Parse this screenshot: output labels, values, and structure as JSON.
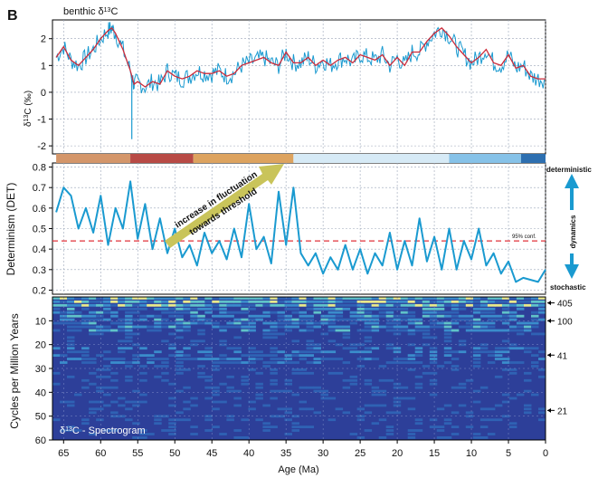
{
  "panel_label": "B",
  "panel1": {
    "title_prefix": "benthic δ",
    "title_sup": "13",
    "title_suffix": "C",
    "ylabel_prefix": "δ",
    "ylabel_sup": "13",
    "ylabel_suffix": "C (‰)",
    "yticks": [
      2,
      1,
      0,
      -1,
      -2
    ],
    "ylim": [
      -2.3,
      2.7
    ],
    "line_color": "#1a9ad0",
    "smooth_color": "#cc2b3a"
  },
  "band_colors": [
    {
      "from": 66,
      "to": 56,
      "color": "#d4966a"
    },
    {
      "from": 56,
      "to": 47.5,
      "color": "#b84a45"
    },
    {
      "from": 47.5,
      "to": 34,
      "color": "#dda35f"
    },
    {
      "from": 34,
      "to": 13,
      "color": "#d6eaf6"
    },
    {
      "from": 13,
      "to": 3.3,
      "color": "#86c2e8"
    },
    {
      "from": 3.3,
      "to": 0,
      "color": "#2d6fb0"
    }
  ],
  "panel2": {
    "ylabel": "Determinism (DET)",
    "yticks": [
      0.8,
      0.7,
      0.6,
      0.5,
      0.4,
      0.3,
      0.2
    ],
    "ylim": [
      0.18,
      0.82
    ],
    "threshold": 0.44,
    "threshold_label": "95% conf.",
    "arrow_text_line1": "increase in fluctuation",
    "arrow_text_line2": "towards threshold",
    "right_top": "deterministic",
    "right_mid": "dynamics",
    "right_bottom": "stochastic",
    "arrow_color": "#1a9ad0"
  },
  "panel3": {
    "ylabel": "Cycles per Million Years",
    "yticks": [
      10,
      20,
      30,
      40,
      50,
      60
    ],
    "ylim": [
      0,
      60
    ],
    "caption_prefix": "δ",
    "caption_sup": "13",
    "caption_suffix": "C - Spectrogram",
    "period_labels": [
      {
        "label": "405",
        "cycles": 2.5
      },
      {
        "label": "100",
        "cycles": 10
      },
      {
        "label": "41",
        "cycles": 24.4
      },
      {
        "label": "21",
        "cycles": 47.6
      }
    ]
  },
  "xaxis": {
    "label": "Age (Ma)",
    "ticks": [
      65,
      60,
      55,
      50,
      45,
      40,
      35,
      30,
      25,
      20,
      15,
      10,
      5,
      0
    ],
    "xlim": [
      66.5,
      0
    ]
  },
  "chart_data": [
    {
      "type": "line",
      "title": "benthic δ13C",
      "ylabel": "δ13C (‰)",
      "xlabel": "Age (Ma)",
      "xlim": [
        66.5,
        0
      ],
      "ylim": [
        -2.3,
        2.7
      ],
      "grid": true,
      "series": [
        {
          "x": [
            66,
            65,
            64,
            63,
            62,
            61,
            60,
            59,
            58.5,
            58,
            57,
            56,
            55.5,
            55,
            54,
            53,
            52,
            51,
            50,
            49,
            48,
            47,
            46,
            45,
            44,
            43,
            42,
            41,
            40,
            39,
            38,
            37,
            36,
            35,
            34,
            33,
            32,
            31,
            30,
            29,
            28,
            27,
            26,
            25,
            24,
            23,
            22,
            21,
            20,
            19,
            18,
            17,
            16,
            15,
            14,
            13,
            12,
            11,
            10,
            9,
            8,
            7,
            6,
            5,
            4,
            3,
            2,
            1,
            0
          ],
          "y": [
            1.3,
            1.7,
            1.2,
            1.0,
            1.3,
            1.6,
            2.0,
            2.3,
            2.4,
            2.2,
            1.6,
            0.8,
            0.3,
            0.4,
            0.2,
            0.4,
            0.3,
            0.8,
            0.6,
            0.5,
            0.6,
            0.8,
            0.7,
            0.7,
            0.8,
            0.6,
            0.7,
            1.0,
            1.1,
            1.2,
            1.3,
            1.1,
            1.0,
            1.5,
            1.1,
            1.1,
            1.3,
            1.0,
            1.2,
            1.0,
            1.2,
            1.3,
            1.1,
            1.4,
            1.3,
            1.2,
            1.4,
            1.0,
            1.3,
            1.0,
            1.5,
            1.5,
            1.9,
            2.2,
            2.4,
            2.1,
            1.7,
            1.4,
            1.1,
            1.3,
            1.6,
            1.1,
            1.0,
            1.4,
            0.9,
            1.0,
            0.6,
            0.5,
            0.5
          ]
        }
      ]
    },
    {
      "type": "line",
      "ylabel": "Determinism (DET)",
      "xlabel": "Age (Ma)",
      "xlim": [
        66.5,
        0
      ],
      "ylim": [
        0.18,
        0.82
      ],
      "grid": true,
      "series": [
        {
          "x": [
            66,
            65,
            64,
            63,
            62,
            61,
            60,
            59,
            58,
            57,
            56,
            55,
            54,
            53,
            52,
            51,
            50,
            49,
            48,
            47,
            46,
            45,
            44,
            43,
            42,
            41,
            40,
            39,
            38,
            37,
            36,
            35,
            34,
            33,
            32,
            31,
            30,
            29,
            28,
            27,
            26,
            25,
            24,
            23,
            22,
            21,
            20,
            19,
            18,
            17,
            16,
            15,
            14,
            13,
            12,
            11,
            10,
            9,
            8,
            7,
            6,
            5,
            4,
            3,
            2,
            1,
            0
          ],
          "y": [
            0.58,
            0.7,
            0.66,
            0.5,
            0.6,
            0.48,
            0.66,
            0.42,
            0.6,
            0.5,
            0.73,
            0.45,
            0.62,
            0.4,
            0.55,
            0.38,
            0.5,
            0.36,
            0.42,
            0.32,
            0.48,
            0.38,
            0.44,
            0.35,
            0.5,
            0.36,
            0.62,
            0.4,
            0.46,
            0.33,
            0.68,
            0.42,
            0.7,
            0.38,
            0.32,
            0.38,
            0.28,
            0.36,
            0.3,
            0.42,
            0.3,
            0.4,
            0.28,
            0.38,
            0.32,
            0.48,
            0.3,
            0.44,
            0.32,
            0.55,
            0.34,
            0.46,
            0.3,
            0.5,
            0.3,
            0.44,
            0.35,
            0.5,
            0.32,
            0.38,
            0.28,
            0.34,
            0.24,
            0.26,
            0.25,
            0.24,
            0.3
          ]
        }
      ]
    },
    {
      "type": "heatmap",
      "ylabel": "Cycles per Million Years",
      "xlabel": "Age (Ma)",
      "xlim": [
        66.5,
        0
      ],
      "ylim": [
        0,
        60
      ]
    }
  ]
}
